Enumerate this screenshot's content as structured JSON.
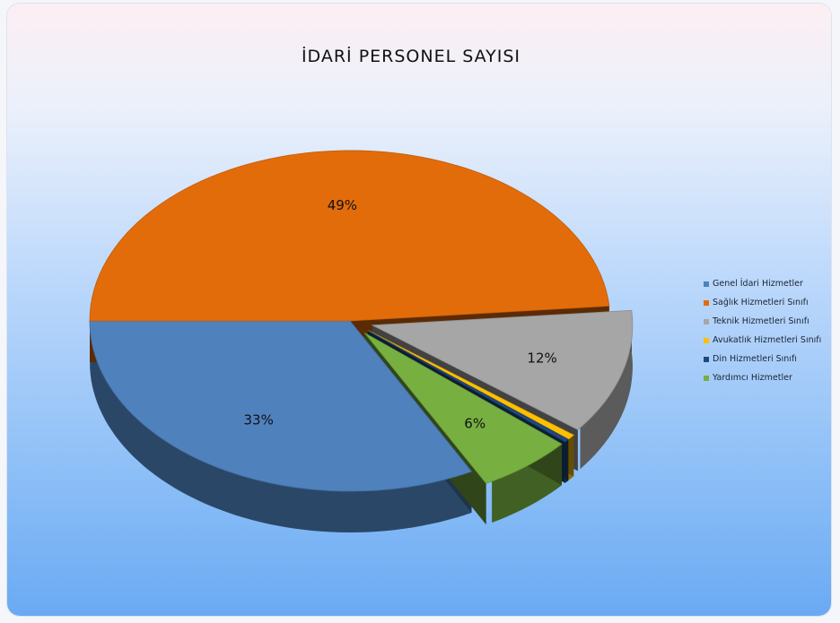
{
  "chart_data": {
    "type": "pie",
    "title": "İDARİ PERSONEL SAYISI",
    "slices": [
      {
        "name": "Genel İdari Hizmetler",
        "value": 33,
        "label": "33%",
        "color": "#4f81bd",
        "exploded": false
      },
      {
        "name": "Sağlık Hizmetleri Sınıfı",
        "value": 49,
        "label": "49%",
        "color": "#e36c0a",
        "exploded": false
      },
      {
        "name": "Teknik Hizmetleri Sınıfı",
        "value": 12,
        "label": "12%",
        "color": "#a6a6a6",
        "exploded": true
      },
      {
        "name": "Avukatlık Hizmetleri Sınıfı",
        "value": 0.5,
        "label": "",
        "color": "#ffc000",
        "exploded": true
      },
      {
        "name": "Din Hizmetleri Sınıfı",
        "value": 0.3,
        "label": "",
        "color": "#1f497d",
        "exploded": true
      },
      {
        "name": "Yardımcı Hizmetler",
        "value": 6,
        "label": "6%",
        "color": "#77b041",
        "exploded": true
      }
    ],
    "legend_position": "right"
  }
}
